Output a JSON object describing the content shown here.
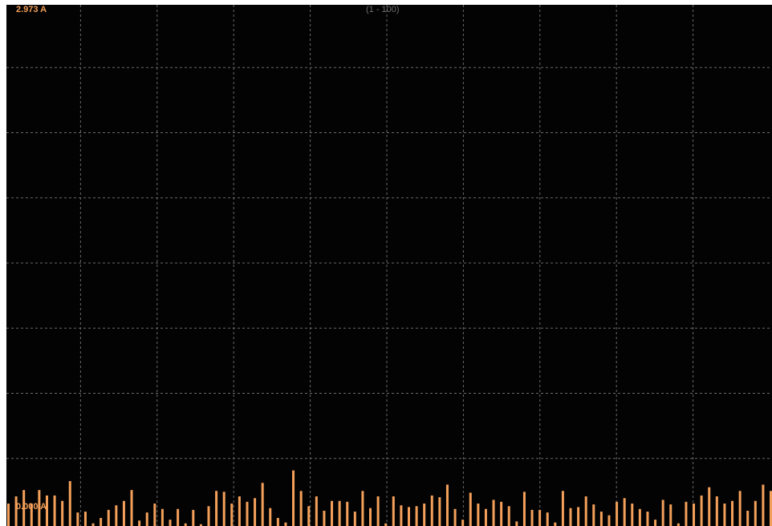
{
  "colors": {
    "background": "#030303",
    "bar": "#f4a05a",
    "grid": "#6a6a6a",
    "range_text": "#6e6e6e"
  },
  "chart_data": {
    "type": "bar",
    "max_label": "2.973 A",
    "min_label": "0.000 A",
    "range_label": "(1 - 100)",
    "ylim": [
      0,
      2.973
    ],
    "grid": true,
    "x": [
      1,
      2,
      3,
      4,
      5,
      6,
      7,
      8,
      9,
      10,
      11,
      12,
      13,
      14,
      15,
      16,
      17,
      18,
      19,
      20,
      21,
      22,
      23,
      24,
      25,
      26,
      27,
      28,
      29,
      30,
      31,
      32,
      33,
      34,
      35,
      36,
      37,
      38,
      39,
      40,
      41,
      42,
      43,
      44,
      45,
      46,
      47,
      48,
      49,
      50,
      51,
      52,
      53,
      54,
      55,
      56,
      57,
      58,
      59,
      60,
      61,
      62,
      63,
      64,
      65,
      66,
      67,
      68,
      69,
      70,
      71,
      72,
      73,
      74,
      75,
      76,
      77,
      78,
      79,
      80,
      81,
      82,
      83,
      84,
      85,
      86,
      87,
      88,
      89,
      90,
      91,
      92,
      93,
      94,
      95,
      96,
      97,
      98,
      99,
      100
    ],
    "values": [
      0.128,
      0.169,
      0.205,
      0.128,
      0.205,
      0.174,
      0.174,
      0.143,
      0.256,
      0.077,
      0.082,
      0.015,
      0.046,
      0.092,
      0.118,
      0.143,
      0.205,
      0.031,
      0.077,
      0.128,
      0.097,
      0.036,
      0.097,
      0.015,
      0.092,
      0.01,
      0.113,
      0.2,
      0.195,
      0.128,
      0.169,
      0.138,
      0.159,
      0.246,
      0.102,
      0.046,
      0.02,
      0.317,
      0.2,
      0.113,
      0.169,
      0.087,
      0.143,
      0.143,
      0.138,
      0.082,
      0.2,
      0.102,
      0.169,
      0.015,
      0.169,
      0.118,
      0.108,
      0.113,
      0.128,
      0.174,
      0.164,
      0.236,
      0.097,
      0.036,
      0.19,
      0.128,
      0.097,
      0.149,
      0.138,
      0.113,
      0.026,
      0.195,
      0.092,
      0.092,
      0.077,
      0.02,
      0.2,
      0.102,
      0.108,
      0.169,
      0.123,
      0.082,
      0.061,
      0.138,
      0.159,
      0.128,
      0.097,
      0.082,
      0.036,
      0.149,
      0.123,
      0.015,
      0.138,
      0.128,
      0.174,
      0.221,
      0.169,
      0.128,
      0.143,
      0.2,
      0.087,
      0.143,
      0.236,
      0.2
    ]
  }
}
